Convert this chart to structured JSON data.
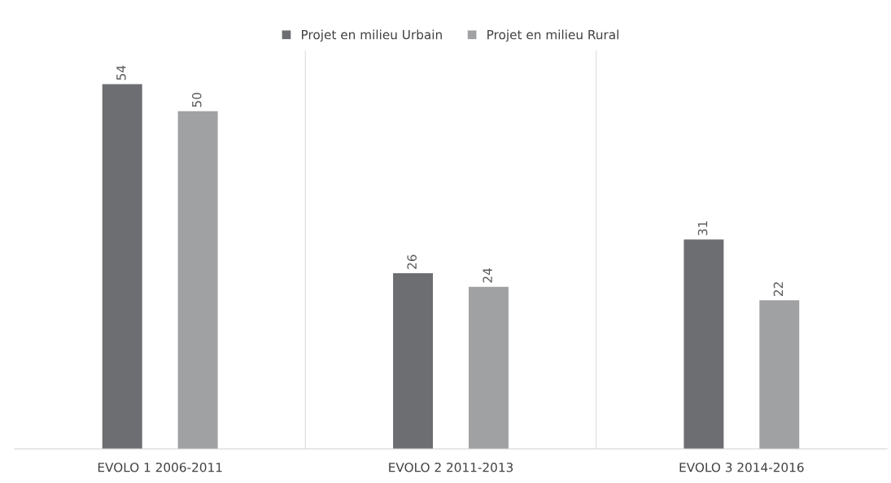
{
  "chart_data": {
    "type": "bar",
    "categories": [
      "EVOLO 1 2006-2011",
      "EVOLO 2 2011-2013",
      "EVOLO 3 2014-2016"
    ],
    "series": [
      {
        "name": "Projet en milieu Urbain",
        "color": "#6d6e71",
        "values": [
          54,
          26,
          31
        ]
      },
      {
        "name": "Projet en milieu Rural",
        "color": "#a0a1a3",
        "values": [
          50,
          24,
          22
        ]
      }
    ],
    "data_labels": true,
    "grid": "x",
    "legend": "top",
    "tick_labels": "x"
  }
}
